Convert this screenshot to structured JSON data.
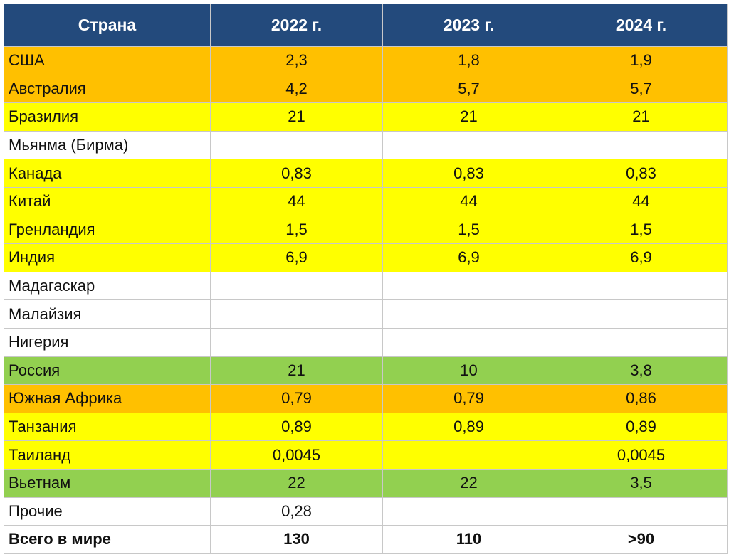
{
  "colors": {
    "header": "#234a7c",
    "orange": "#ffc000",
    "yellow": "#ffff00",
    "green": "#92d050",
    "white": "#ffffff"
  },
  "table": {
    "headers": [
      "Страна",
      "2022 г.",
      "2023 г.",
      "2024 г."
    ],
    "rows": [
      {
        "country": "США",
        "y2022": "2,3",
        "y2023": "1,8",
        "y2024": "1,9",
        "color": "orange"
      },
      {
        "country": "Австралия",
        "y2022": "4,2",
        "y2023": "5,7",
        "y2024": "5,7",
        "color": "orange"
      },
      {
        "country": "Бразилия",
        "y2022": "21",
        "y2023": "21",
        "y2024": "21",
        "color": "yellow"
      },
      {
        "country": "Мьянма (Бирма)",
        "y2022": "",
        "y2023": "",
        "y2024": "",
        "color": "white"
      },
      {
        "country": "Канада",
        "y2022": "0,83",
        "y2023": "0,83",
        "y2024": "0,83",
        "color": "yellow"
      },
      {
        "country": "Китай",
        "y2022": "44",
        "y2023": "44",
        "y2024": "44",
        "color": "yellow"
      },
      {
        "country": "Гренландия",
        "y2022": "1,5",
        "y2023": "1,5",
        "y2024": "1,5",
        "color": "yellow"
      },
      {
        "country": "Индия",
        "y2022": "6,9",
        "y2023": "6,9",
        "y2024": "6,9",
        "color": "yellow"
      },
      {
        "country": "Мадагаскар",
        "y2022": "",
        "y2023": "",
        "y2024": "",
        "color": "white"
      },
      {
        "country": "Малайзия",
        "y2022": "",
        "y2023": "",
        "y2024": "",
        "color": "white"
      },
      {
        "country": "Нигерия",
        "y2022": "",
        "y2023": "",
        "y2024": "",
        "color": "white"
      },
      {
        "country": "Россия",
        "y2022": "21",
        "y2023": "10",
        "y2024": "3,8",
        "color": "green"
      },
      {
        "country": "Южная Африка",
        "y2022": "0,79",
        "y2023": "0,79",
        "y2024": "0,86",
        "color": "orange"
      },
      {
        "country": "Танзания",
        "y2022": "0,89",
        "y2023": "0,89",
        "y2024": "0,89",
        "color": "yellow"
      },
      {
        "country": "Таиланд",
        "y2022": "0,0045",
        "y2023": "",
        "y2024": "0,0045",
        "color": "yellow"
      },
      {
        "country": "Вьетнам",
        "y2022": "22",
        "y2023": "22",
        "y2024": "3,5",
        "color": "green"
      },
      {
        "country": "Прочие",
        "y2022": "0,28",
        "y2023": "",
        "y2024": "",
        "color": "white"
      }
    ],
    "total": {
      "country": "Всего в мире",
      "y2022": "130",
      "y2023": "110",
      "y2024": ">90"
    }
  }
}
